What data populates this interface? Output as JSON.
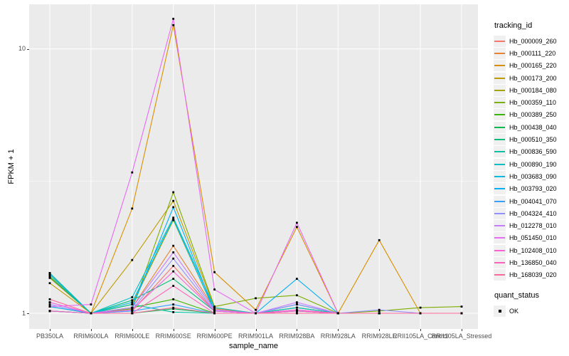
{
  "chart_data": {
    "type": "line",
    "xlabel": "sample_name",
    "ylabel": "FPKM + 1",
    "y_scale": "log10",
    "y_ticks": [
      1,
      10
    ],
    "y_tick_labels": [
      "1",
      "10"
    ],
    "y_minor_ticks": [
      3.162
    ],
    "grid": true,
    "panel_bg": "#EBEBEB",
    "grid_color": "#FFFFFF",
    "point_color": "#000000",
    "point_shape": "square",
    "legend_position": "right",
    "categories": [
      "PB350LA",
      "RRIM600LA",
      "RRIM600LE",
      "RRIM600SE",
      "RRIM600PE",
      "RRIM901LA",
      "RRIM928BA",
      "RRIM928LA",
      "RRIM928LE",
      "RRII105LA_Control",
      "RRII105LA_Stressed"
    ],
    "series": [
      {
        "name": "Hb_000009_260",
        "color": "#F8766D",
        "values": [
          1.06,
          1.0,
          1.02,
          1.51,
          1.02,
          1.0,
          1.02,
          1.0,
          1.0,
          1.0,
          1.0
        ]
      },
      {
        "name": "Hb_000111_220",
        "color": "#EA8331",
        "values": [
          1.42,
          1.0,
          1.05,
          1.8,
          1.04,
          1.0,
          1.02,
          1.0,
          1.0,
          1.0,
          1.0
        ]
      },
      {
        "name": "Hb_000165_220",
        "color": "#D89000",
        "values": [
          1.36,
          1.0,
          2.49,
          12.3,
          1.43,
          1.03,
          2.12,
          1.0,
          1.89,
          1.0,
          1.0
        ]
      },
      {
        "name": "Hb_000173_200",
        "color": "#C09B00",
        "values": [
          1.3,
          1.0,
          1.59,
          2.66,
          1.05,
          1.0,
          1.02,
          1.0,
          1.0,
          1.0,
          1.0
        ]
      },
      {
        "name": "Hb_000184_080",
        "color": "#A3A500",
        "values": [
          1.38,
          1.0,
          1.08,
          2.25,
          1.02,
          1.0,
          1.05,
          1.0,
          1.0,
          1.0,
          1.0
        ]
      },
      {
        "name": "Hb_000359_110",
        "color": "#7CAE00",
        "values": [
          1.02,
          1.0,
          1.04,
          2.87,
          1.06,
          1.14,
          1.17,
          1.0,
          1.02,
          1.05,
          1.06
        ]
      },
      {
        "name": "Hb_000389_250",
        "color": "#39B600",
        "values": [
          1.4,
          1.0,
          1.05,
          1.13,
          1.0,
          1.0,
          1.05,
          1.0,
          1.0,
          1.0,
          1.0
        ]
      },
      {
        "name": "Hb_000438_040",
        "color": "#00BB4E",
        "values": [
          1.02,
          1.0,
          1.0,
          1.04,
          1.0,
          1.0,
          1.0,
          1.0,
          1.0,
          1.0,
          1.0
        ]
      },
      {
        "name": "Hb_000510_350",
        "color": "#00BF7D",
        "values": [
          1.37,
          1.0,
          1.12,
          1.35,
          1.02,
          1.0,
          1.08,
          1.0,
          1.0,
          1.0,
          1.0
        ]
      },
      {
        "name": "Hb_000836_590",
        "color": "#00C1A3",
        "values": [
          1.02,
          1.0,
          1.08,
          1.01,
          1.0,
          1.0,
          1.08,
          1.0,
          1.0,
          1.0,
          1.0
        ]
      },
      {
        "name": "Hb_000890_190",
        "color": "#00BFC4",
        "values": [
          1.42,
          1.0,
          1.15,
          2.3,
          1.05,
          1.0,
          1.05,
          1.0,
          1.0,
          1.0,
          1.0
        ]
      },
      {
        "name": "Hb_003683_090",
        "color": "#00BAE0",
        "values": [
          1.4,
          1.0,
          1.1,
          2.27,
          1.02,
          1.0,
          1.02,
          1.0,
          1.0,
          1.0,
          1.0
        ]
      },
      {
        "name": "Hb_003793_020",
        "color": "#00B0F6",
        "values": [
          1.06,
          1.0,
          1.05,
          2.52,
          1.02,
          1.0,
          1.35,
          1.0,
          1.0,
          1.0,
          1.0
        ]
      },
      {
        "name": "Hb_004041_070",
        "color": "#35A2FF",
        "values": [
          1.02,
          1.0,
          1.02,
          1.08,
          1.0,
          1.0,
          1.02,
          1.0,
          1.0,
          1.0,
          1.0
        ]
      },
      {
        "name": "Hb_004324_410",
        "color": "#9590FF",
        "values": [
          1.08,
          1.0,
          1.03,
          1.61,
          1.02,
          1.0,
          1.08,
          1.0,
          1.03,
          1.0,
          1.0
        ]
      },
      {
        "name": "Hb_012278_010",
        "color": "#C77CFF",
        "values": [
          1.1,
          1.0,
          1.05,
          1.7,
          1.03,
          1.0,
          1.1,
          1.0,
          1.0,
          1.0,
          1.0
        ]
      },
      {
        "name": "Hb_051450_010",
        "color": "#E76BF3",
        "values": [
          1.06,
          1.08,
          3.41,
          13.0,
          1.23,
          1.0,
          2.2,
          1.0,
          1.0,
          1.0,
          1.0
        ]
      },
      {
        "name": "Hb_102408_010",
        "color": "#FA62DB",
        "values": [
          1.1,
          1.0,
          1.03,
          1.44,
          1.02,
          1.0,
          1.03,
          1.0,
          1.0,
          1.0,
          1.0
        ]
      },
      {
        "name": "Hb_136850_040",
        "color": "#FF62BC",
        "values": [
          1.02,
          1.0,
          1.0,
          1.27,
          1.0,
          1.0,
          1.02,
          1.0,
          1.0,
          1.0,
          1.0
        ]
      },
      {
        "name": "Hb_168039_020",
        "color": "#FF6A98",
        "values": [
          1.13,
          1.0,
          1.0,
          1.05,
          1.0,
          1.0,
          1.0,
          1.0,
          1.0,
          1.0,
          1.0
        ]
      }
    ],
    "legend": {
      "color_title": "tracking_id",
      "shape_title": "quant_status",
      "shape_items": [
        {
          "label": "OK",
          "shape": "square",
          "color": "#000000"
        }
      ]
    }
  }
}
